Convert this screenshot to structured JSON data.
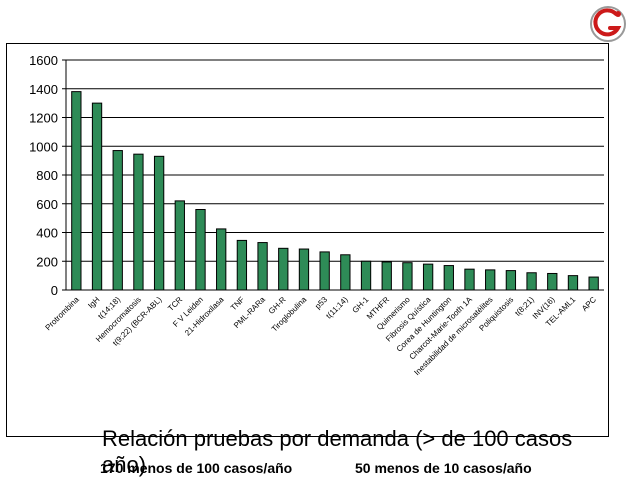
{
  "logo": {
    "text": "G",
    "accent": "#cc1a1a",
    "secondary": "#999999"
  },
  "chart_data": {
    "type": "bar",
    "title": "Relación pruebas por demanda (> de 100 casos año)",
    "xlabel": "",
    "ylabel": "",
    "ylim": [
      0,
      1600
    ],
    "yticks": [
      "0",
      "200",
      "400",
      "600",
      "800",
      "1000",
      "1200",
      "1400",
      "1600"
    ],
    "grid": true,
    "bar_color": "#2e8b57",
    "categories": [
      "Protrombina",
      "IgH",
      "t(14;18)",
      "Hemocromatosis",
      "t(9;22) (BCR-ABL)",
      "TCR",
      "F V Leiden",
      "21-Hidroxilasa",
      "TNF",
      "PML-RARa",
      "GH-R",
      "Tiroglobulina",
      "p53",
      "t(11;14)",
      "GH-1",
      "MTHFR",
      "Quimerismo",
      "Fibrosis Quística",
      "Corea de Huntington",
      "Charcot-Marie-Tooth 1A",
      "Inestabilidad de microsatélites",
      "Poliquistosis",
      "t(8;21)",
      "INV(16)",
      "TEL-AML1",
      "APC"
    ],
    "values": [
      1380,
      1300,
      970,
      945,
      930,
      620,
      560,
      425,
      345,
      330,
      290,
      285,
      265,
      245,
      200,
      195,
      190,
      180,
      170,
      145,
      140,
      135,
      120,
      115,
      100,
      90
    ]
  },
  "footer": {
    "left": "170 menos de 100 casos/año",
    "right": "50 menos de 10 casos/año"
  }
}
